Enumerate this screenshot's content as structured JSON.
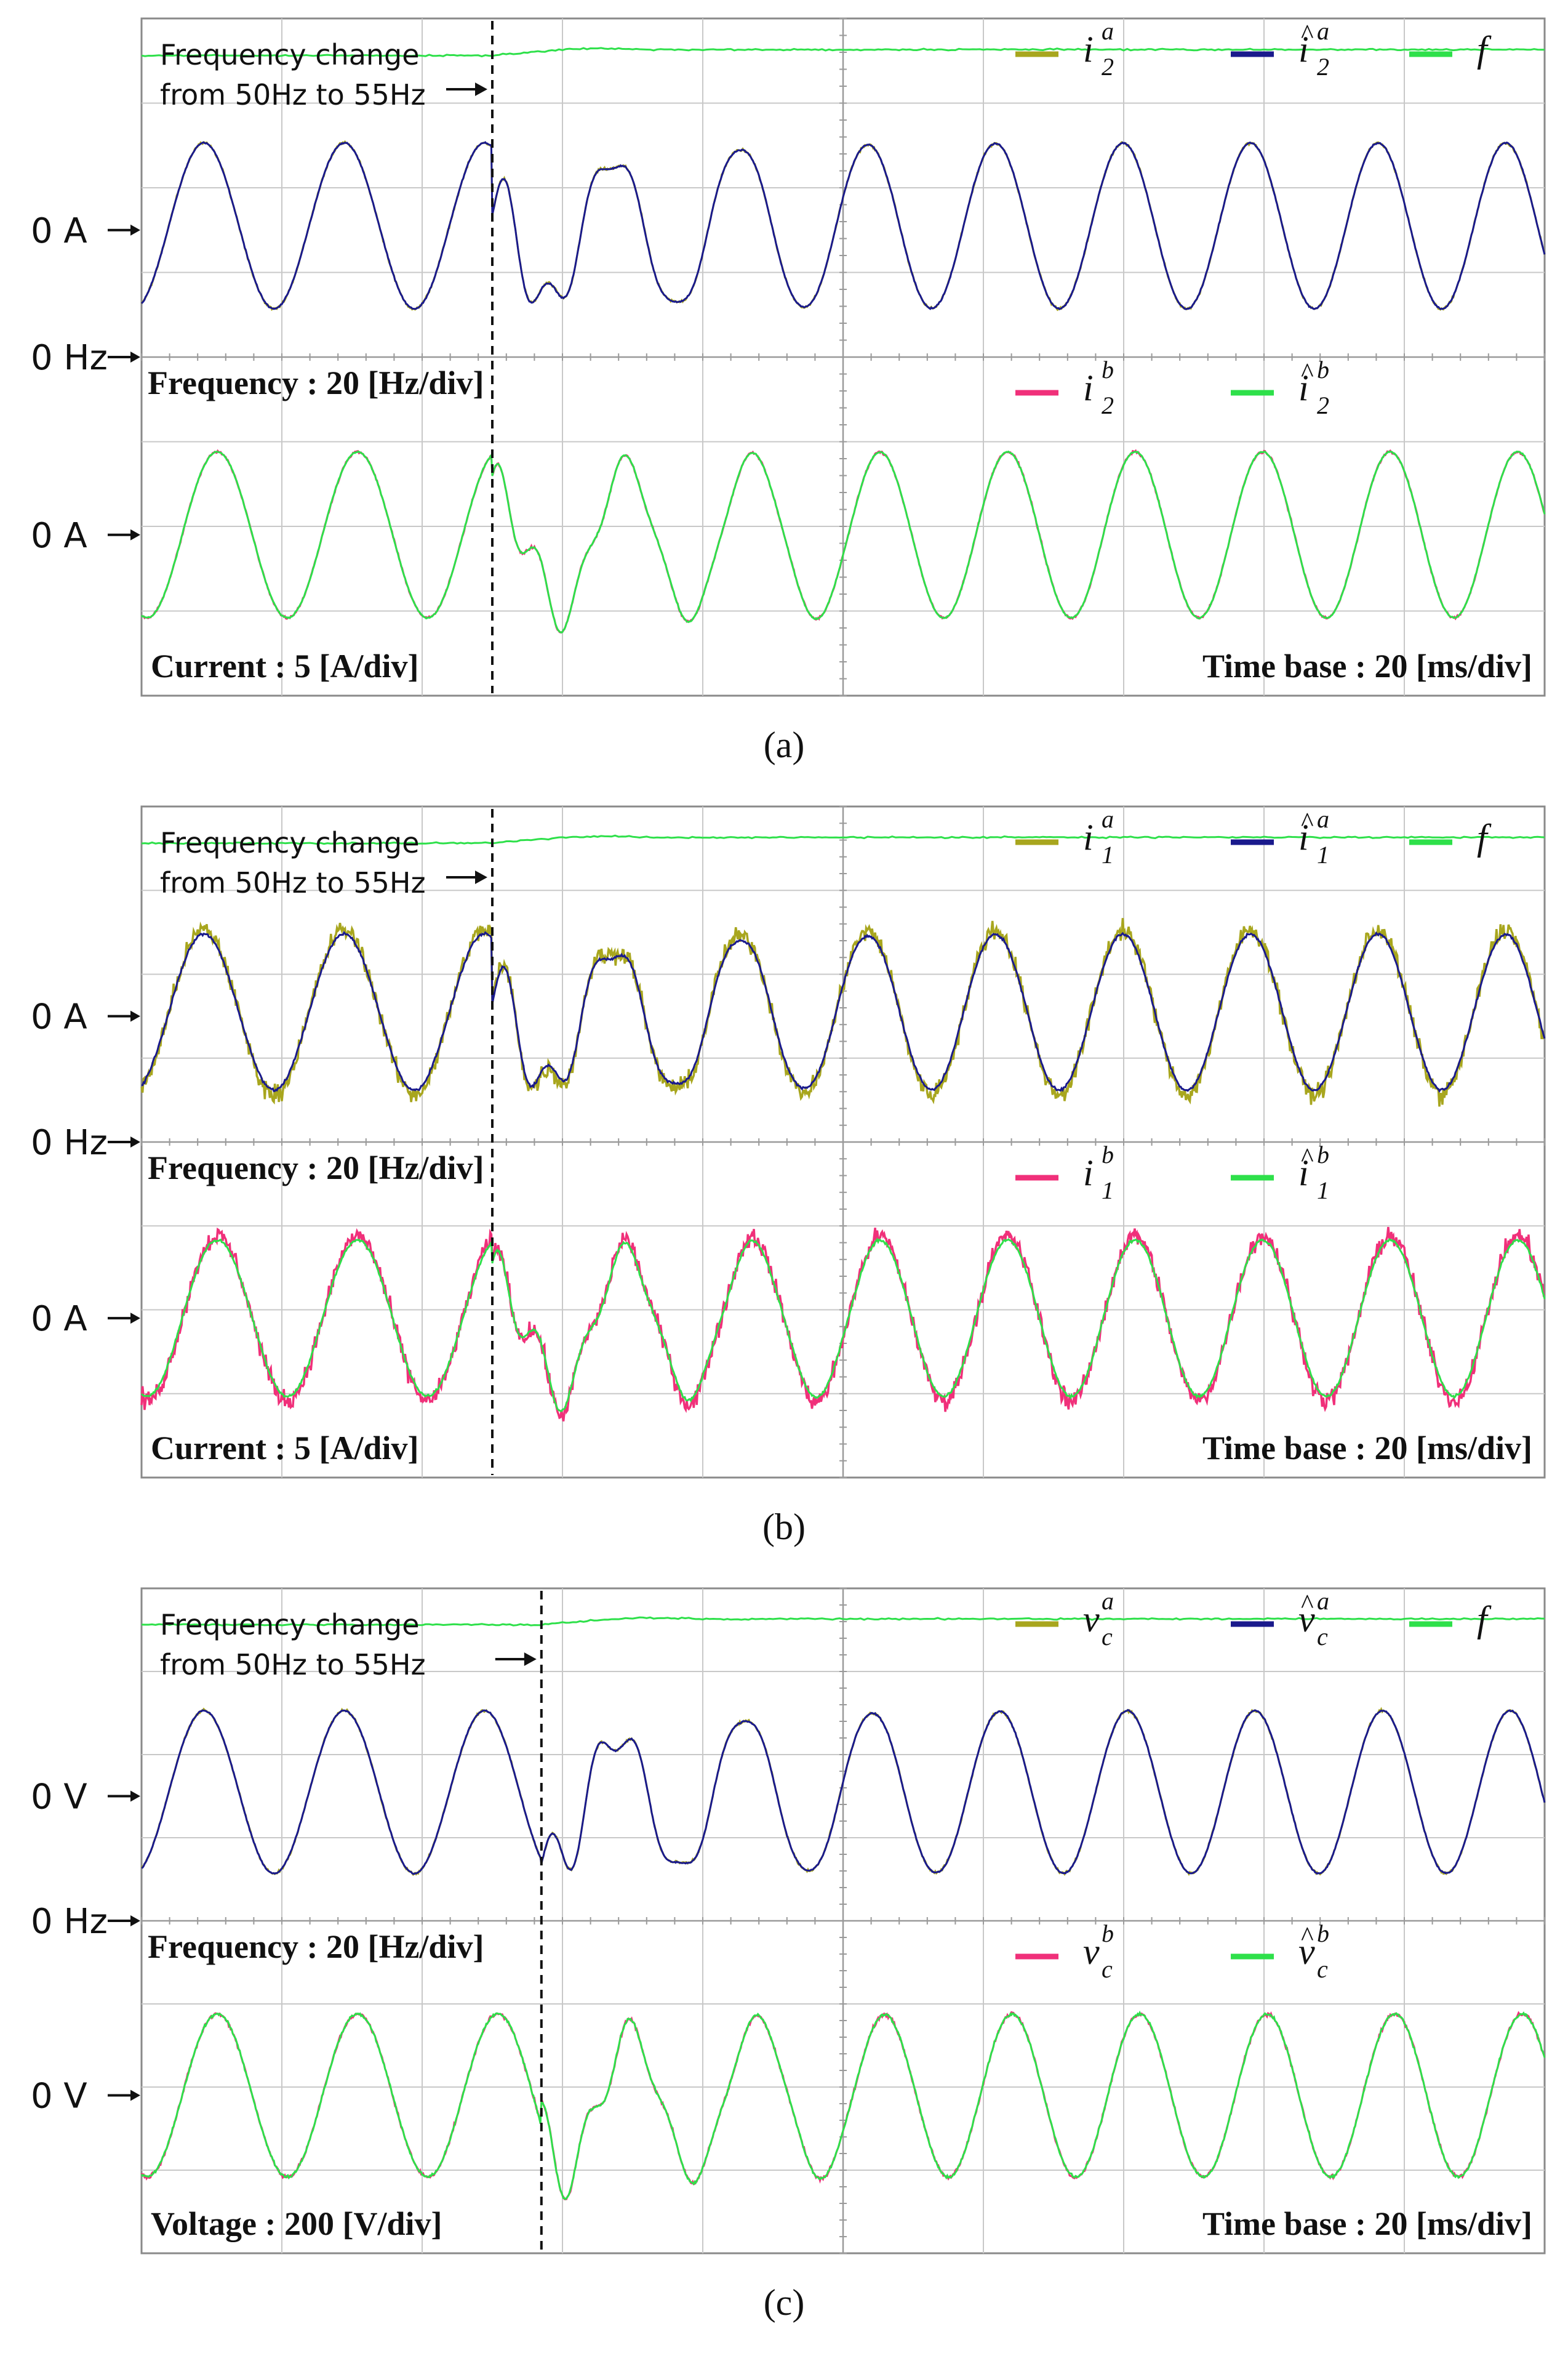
{
  "figure": {
    "colors": {
      "olive": "#a8a61e",
      "navy": "#1a1a8c",
      "green": "#2ee04a",
      "pink": "#f0307a",
      "grid": "#c8c8c8",
      "frame": "#8a8a8a"
    }
  },
  "panels": [
    {
      "caption": "(a)",
      "annotation": [
        "Frequency change",
        "from 50Hz to 55Hz"
      ],
      "label_top": "Frequency : 20 [Hz/div]",
      "label_bottom_left": "Current : 5 [A/div]",
      "label_bottom_right": "Time base : 20 [ms/div]",
      "markers": [
        "0 A",
        "0 Hz",
        "0 A"
      ],
      "legend_top": [
        {
          "sym": "i",
          "hat": false,
          "sub": "2",
          "sup": "a",
          "color": "olive"
        },
        {
          "sym": "i",
          "hat": true,
          "sub": "2",
          "sup": "a",
          "color": "navy"
        },
        {
          "sym": "f",
          "hat": false,
          "sub": "",
          "sup": "",
          "color": "green"
        }
      ],
      "legend_bottom": [
        {
          "sym": "i",
          "hat": false,
          "sub": "2",
          "sup": "b",
          "color": "pink"
        },
        {
          "sym": "i",
          "hat": true,
          "sub": "2",
          "sup": "b",
          "color": "green"
        }
      ]
    },
    {
      "caption": "(b)",
      "annotation": [
        "Frequency change",
        "from 50Hz to 55Hz"
      ],
      "label_top": "Frequency : 20 [Hz/div]",
      "label_bottom_left": "Current : 5 [A/div]",
      "label_bottom_right": "Time base : 20 [ms/div]",
      "markers": [
        "0 A",
        "0 Hz",
        "0 A"
      ],
      "legend_top": [
        {
          "sym": "i",
          "hat": false,
          "sub": "1",
          "sup": "a",
          "color": "olive"
        },
        {
          "sym": "i",
          "hat": true,
          "sub": "1",
          "sup": "a",
          "color": "navy"
        },
        {
          "sym": "f",
          "hat": false,
          "sub": "",
          "sup": "",
          "color": "green"
        }
      ],
      "legend_bottom": [
        {
          "sym": "i",
          "hat": false,
          "sub": "1",
          "sup": "b",
          "color": "pink"
        },
        {
          "sym": "i",
          "hat": true,
          "sub": "1",
          "sup": "b",
          "color": "green"
        }
      ]
    },
    {
      "caption": "(c)",
      "annotation": [
        "Frequency change",
        "from 50Hz to 55Hz"
      ],
      "label_top": "Frequency : 20 [Hz/div]",
      "label_bottom_left": "Voltage : 200 [V/div]",
      "label_bottom_right": "Time base : 20 [ms/div]",
      "markers": [
        "0 V",
        "0 Hz",
        "0 V"
      ],
      "legend_top": [
        {
          "sym": "v",
          "hat": false,
          "sub": "c",
          "sup": "a",
          "color": "olive"
        },
        {
          "sym": "v",
          "hat": true,
          "sub": "c",
          "sup": "a",
          "color": "navy"
        },
        {
          "sym": "f",
          "hat": false,
          "sub": "",
          "sup": "",
          "color": "green"
        }
      ],
      "legend_bottom": [
        {
          "sym": "v",
          "hat": false,
          "sub": "c",
          "sup": "b",
          "color": "pink"
        },
        {
          "sym": "v",
          "hat": true,
          "sub": "c",
          "sup": "b",
          "color": "green"
        }
      ]
    }
  ],
  "chart_data": [
    {
      "type": "line",
      "panel": "(a)",
      "time_base_ms_per_div": 20,
      "x_divisions": 10,
      "frequency_scale_hz_per_div": 20,
      "amplitude_scale_a_per_div": 5,
      "frequency_step_hz": [
        50,
        55
      ],
      "step_time_ms": 50,
      "series": [
        {
          "name": "i2a",
          "color": "olive",
          "trace": "top",
          "amplitude_div": 1.0,
          "noise": 0.02
        },
        {
          "name": "î2a",
          "color": "navy",
          "trace": "top",
          "amplitude_div": 1.0,
          "noise": 0.01
        },
        {
          "name": "f",
          "color": "green",
          "trace": "frequency"
        },
        {
          "name": "i2b",
          "color": "pink",
          "trace": "bottom",
          "amplitude_div": 1.0,
          "noise": 0.02
        },
        {
          "name": "î2b",
          "color": "green",
          "trace": "bottom",
          "amplitude_div": 1.0,
          "noise": 0.01
        }
      ]
    },
    {
      "type": "line",
      "panel": "(b)",
      "time_base_ms_per_div": 20,
      "x_divisions": 10,
      "frequency_scale_hz_per_div": 20,
      "amplitude_scale_a_per_div": 5,
      "frequency_step_hz": [
        50,
        55
      ],
      "step_time_ms": 50,
      "series": [
        {
          "name": "i1a",
          "color": "olive",
          "trace": "top",
          "amplitude_div": 1.0,
          "noise": 0.14
        },
        {
          "name": "î1a",
          "color": "navy",
          "trace": "top",
          "amplitude_div": 0.95,
          "noise": 0.02
        },
        {
          "name": "f",
          "color": "green",
          "trace": "frequency"
        },
        {
          "name": "i1b",
          "color": "pink",
          "trace": "bottom",
          "amplitude_div": 1.0,
          "noise": 0.14
        },
        {
          "name": "î1b",
          "color": "green",
          "trace": "bottom",
          "amplitude_div": 0.95,
          "noise": 0.02
        }
      ]
    },
    {
      "type": "line",
      "panel": "(c)",
      "time_base_ms_per_div": 20,
      "x_divisions": 10,
      "frequency_scale_hz_per_div": 20,
      "amplitude_scale_v_per_div": 200,
      "frequency_step_hz": [
        50,
        55
      ],
      "step_time_ms": 57,
      "series": [
        {
          "name": "vca",
          "color": "olive",
          "trace": "top",
          "amplitude_div": 1.0,
          "noise": 0.02
        },
        {
          "name": "v̂ca",
          "color": "navy",
          "trace": "top",
          "amplitude_div": 1.0,
          "noise": 0.01
        },
        {
          "name": "f",
          "color": "green",
          "trace": "frequency"
        },
        {
          "name": "vcb",
          "color": "pink",
          "trace": "bottom",
          "amplitude_div": 1.0,
          "noise": 0.03
        },
        {
          "name": "v̂cb",
          "color": "green",
          "trace": "bottom",
          "amplitude_div": 1.0,
          "noise": 0.02
        }
      ]
    }
  ]
}
